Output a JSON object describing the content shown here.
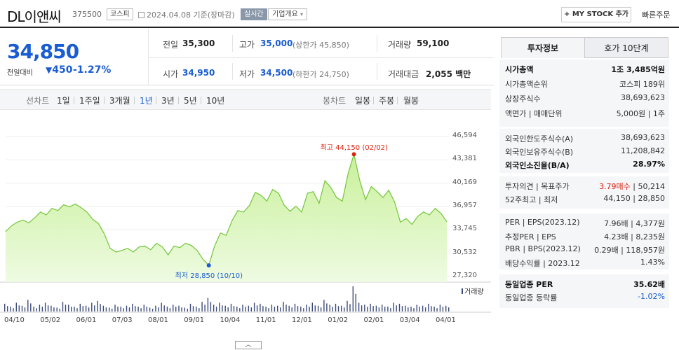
{
  "header": {
    "title": "DL이앤씨",
    "code": "375500",
    "market": "코스피",
    "date_text": "2024.04.08  기준(장마감)",
    "realtime_label": "실시간",
    "corp_info_label": "기업개요",
    "my_stock_label": "+ MY STOCK 추가",
    "quick_order_label": "빠른주문"
  },
  "price": {
    "current": "34,850",
    "change_label": "전일대비",
    "change_value": "450",
    "change_pct": "-1.27%",
    "prev_close_label": "전일",
    "prev_close": "35,300",
    "high_label": "고가",
    "high": "35,000",
    "upper_limit_text": "(상한가 45,850)",
    "volume_label": "거래량",
    "volume": "59,100",
    "open_label": "시가",
    "open": "34,950",
    "low_label": "저가",
    "low": "34,500",
    "lower_limit_text": "(하한가 24,750)",
    "trade_value_label": "거래대금",
    "trade_value": "2,055 백만"
  },
  "periods": {
    "line_label": "선차트",
    "items": [
      "1일",
      "1주일",
      "3개월",
      "1년",
      "3년",
      "5년",
      "10년"
    ],
    "selected": "1년",
    "candle_label": "봉차트",
    "candle_items": [
      "일봉",
      "주봉",
      "월봉"
    ]
  },
  "chart_data": {
    "type": "area",
    "y_ticks": [
      "46,594",
      "43,381",
      "40,169",
      "36,957",
      "33,745",
      "30,532",
      "27,320"
    ],
    "ylim": [
      27320,
      46594
    ],
    "x_ticks": [
      "04/10",
      "05/02",
      "06/01",
      "07/03",
      "08/01",
      "09/01",
      "10/04",
      "11/01",
      "12/01",
      "01/02",
      "02/01",
      "03/04",
      "04/01"
    ],
    "values": [
      33500,
      34300,
      34800,
      35100,
      34700,
      35400,
      36200,
      35800,
      36700,
      36400,
      37200,
      36900,
      37300,
      36800,
      36200,
      35200,
      34600,
      33200,
      31200,
      30700,
      30900,
      31200,
      30700,
      31400,
      31500,
      31000,
      31900,
      31400,
      30300,
      31500,
      31300,
      31900,
      31600,
      30900,
      29700,
      28850,
      31500,
      33300,
      33000,
      35000,
      36400,
      36200,
      37100,
      38900,
      38500,
      37700,
      39300,
      38800,
      37100,
      36300,
      37000,
      36200,
      38800,
      39000,
      37400,
      40500,
      39600,
      38200,
      37700,
      41500,
      44150,
      40500,
      37900,
      39700,
      39000,
      38200,
      39200,
      37600,
      34800,
      35300,
      34500,
      35600,
      36200,
      35800,
      36700,
      36000,
      34850
    ],
    "max_label": "최고 44,150 (02/02)",
    "min_label": "최저 28,850 (10/10)",
    "volume_legend": "거래량",
    "volume": [
      8,
      5,
      9,
      6,
      12,
      5,
      7,
      9,
      6,
      4,
      10,
      7,
      5,
      8,
      6,
      9,
      11,
      6,
      4,
      7,
      5,
      6,
      8,
      5,
      7,
      4,
      6,
      9,
      5,
      7,
      6,
      4,
      8,
      5,
      10,
      14,
      7,
      9,
      6,
      8,
      5,
      7,
      6,
      9,
      8,
      5,
      7,
      6,
      10,
      6,
      8,
      5,
      7,
      9,
      6,
      12,
      7,
      8,
      6,
      11,
      26,
      9,
      7,
      8,
      6,
      7,
      5,
      9,
      8,
      6,
      5,
      7,
      6,
      8,
      5,
      7,
      6
    ],
    "colors": {
      "line": "#7ac943",
      "fill_top": "#c9f09a",
      "fill_bottom": "#eefbe2",
      "volume": "#3d4b7a",
      "max": "#d21",
      "min": "#1a5cd1"
    }
  },
  "right_panel": {
    "tabs": [
      "투자정보",
      "호가 10단계"
    ],
    "sec1": [
      {
        "label": "시가총액",
        "value": "1조 3,485억원",
        "bold": true
      },
      {
        "label": "시가총액순위",
        "value": "코스피 189위"
      },
      {
        "label": "상장주식수",
        "value": "38,693,623"
      },
      {
        "label": "액면가 | 매매단위",
        "value": "5,000원 | 1주"
      }
    ],
    "sec2": [
      {
        "label": "외국인한도주식수(A)",
        "value": "38,693,623"
      },
      {
        "label": "외국인보유주식수(B)",
        "value": "11,208,842"
      },
      {
        "label": "외국인소진율(B/A)",
        "value": "28.97%",
        "bold": true
      }
    ],
    "sec3": [
      {
        "label": "투자의견 | 목표주가",
        "value_red": "3.79매수",
        "value": "50,214"
      },
      {
        "label": "52주최고 | 최저",
        "value": "44,150 | 28,850"
      }
    ],
    "sec4": [
      {
        "label": "PER | EPS(2023.12)",
        "value": "7.96배 | 4,377원"
      },
      {
        "label": "추정PER | EPS",
        "value": "4.23배 | 8,235원"
      },
      {
        "label": "PBR | BPS(2023.12)",
        "value": "0.29배 | 118,957원"
      },
      {
        "label": "배당수익률 | 2023.12",
        "value": "1.43%"
      }
    ],
    "sec5": [
      {
        "label": "동일업종 PER",
        "value": "35.62배",
        "bold": true
      },
      {
        "label": "동일업종 등락률",
        "value": "-1.02%",
        "blue": true
      }
    ]
  }
}
